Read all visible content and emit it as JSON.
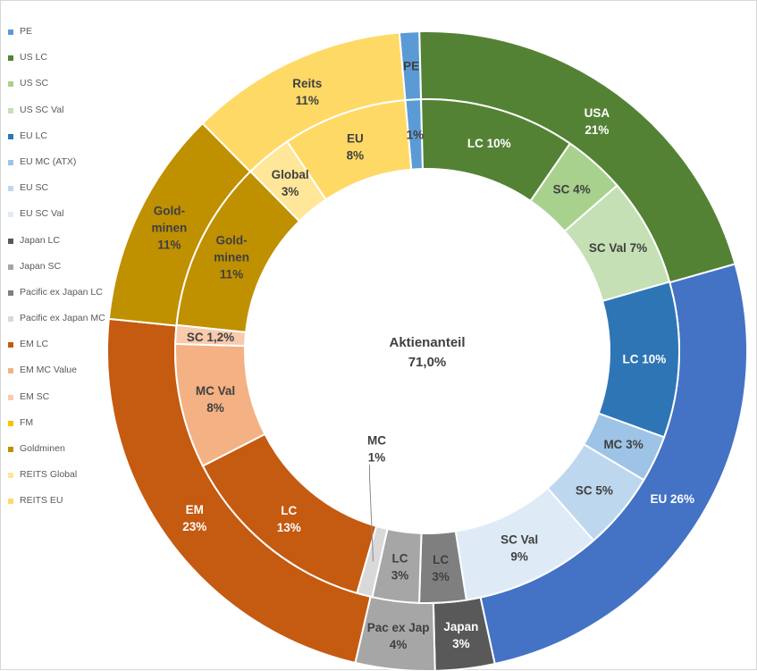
{
  "chart_data": {
    "type": "pie",
    "subtype": "doughnut",
    "center_label": {
      "title": "Aktienanteil",
      "value": "71,0%"
    },
    "legend_position": "left",
    "legend": [
      {
        "label": "PE",
        "color": "#5b9bd5"
      },
      {
        "label": "US LC",
        "color": "#548235"
      },
      {
        "label": "US SC",
        "color": "#a9d18e"
      },
      {
        "label": "US SC Val",
        "color": "#c5e0b4"
      },
      {
        "label": "EU LC",
        "color": "#2e75b6"
      },
      {
        "label": "EU MC (ATX)",
        "color": "#9dc3e6"
      },
      {
        "label": "EU SC",
        "color": "#bdd7ee"
      },
      {
        "label": "EU SC Val",
        "color": "#deebf7"
      },
      {
        "label": "Japan LC",
        "color": "#595959"
      },
      {
        "label": "Japan SC",
        "color": "#a6a6a6"
      },
      {
        "label": "Pacific ex Japan LC",
        "color": "#7f7f7f"
      },
      {
        "label": "Pacific ex Japan MC",
        "color": "#d9d9d9"
      },
      {
        "label": "EM LC",
        "color": "#c55a11"
      },
      {
        "label": "EM MC Value",
        "color": "#f4b183"
      },
      {
        "label": "EM SC",
        "color": "#f8cbad"
      },
      {
        "label": "FM",
        "color": "#ffc000"
      },
      {
        "label": "Goldminen",
        "color": "#bf9000"
      },
      {
        "label": "REITS Global",
        "color": "#ffe699"
      },
      {
        "label": "REITS EU",
        "color": "#ffd966"
      }
    ],
    "outer_ring": [
      {
        "label": [
          "PE"
        ],
        "value": 1,
        "color": "#5b9bd5",
        "text_color": "#404040"
      },
      {
        "label": [
          "USA",
          "21%"
        ],
        "value": 21,
        "color": "#548235",
        "text_color": "#ffffff"
      },
      {
        "label": [
          "EU 26%"
        ],
        "value": 26,
        "color": "#4472c4",
        "text_color": "#ffffff"
      },
      {
        "label": [
          "Japan",
          "3%"
        ],
        "value": 3,
        "color": "#595959",
        "text_color": "#ffffff"
      },
      {
        "label": [
          "Pac ex Jap",
          "4%"
        ],
        "value": 4,
        "color": "#a6a6a6",
        "text_color": "#404040"
      },
      {
        "label": [
          "EM",
          "23%"
        ],
        "value": 23,
        "color": "#c55a11",
        "text_color": "#ffffff"
      },
      {
        "label": [
          "Gold-",
          "minen",
          "11%"
        ],
        "value": 11,
        "color": "#bf9000",
        "text_color": "#404040"
      },
      {
        "label": [
          "Reits",
          "11%"
        ],
        "value": 11,
        "color": "#ffd966",
        "text_color": "#404040"
      }
    ],
    "inner_ring": [
      {
        "label": [
          "1%"
        ],
        "value": 1,
        "color": "#5b9bd5",
        "text_color": "#404040"
      },
      {
        "label": [
          "LC 10%"
        ],
        "value": 10,
        "color": "#548235",
        "text_color": "#ffffff"
      },
      {
        "label": [
          "SC 4%"
        ],
        "value": 4,
        "color": "#a9d18e",
        "text_color": "#404040"
      },
      {
        "label": [
          "SC Val 7%"
        ],
        "value": 7,
        "color": "#c5e0b4",
        "text_color": "#404040"
      },
      {
        "label": [
          "LC 10%"
        ],
        "value": 10,
        "color": "#2e75b6",
        "text_color": "#ffffff"
      },
      {
        "label": [
          "MC 3%"
        ],
        "value": 3,
        "color": "#9dc3e6",
        "text_color": "#404040"
      },
      {
        "label": [
          "SC 5%"
        ],
        "value": 5,
        "color": "#bdd7ee",
        "text_color": "#404040"
      },
      {
        "label": [
          "SC Val",
          "9%"
        ],
        "value": 9,
        "color": "#deebf7",
        "text_color": "#404040"
      },
      {
        "label": [
          "LC",
          "3%"
        ],
        "value": 3,
        "color": "#7f7f7f",
        "text_color": "#404040"
      },
      {
        "label": [
          "LC",
          "3%"
        ],
        "value": 3,
        "color": "#a6a6a6",
        "text_color": "#404040"
      },
      {
        "label": [
          "MC",
          "1%"
        ],
        "value": 1,
        "color": "#d9d9d9",
        "text_color": "#404040",
        "callout": true
      },
      {
        "label": [
          "LC",
          "13%"
        ],
        "value": 13,
        "color": "#c55a11",
        "text_color": "#ffffff"
      },
      {
        "label": [
          "MC Val",
          "8%"
        ],
        "value": 8,
        "color": "#f4b183",
        "text_color": "#404040"
      },
      {
        "label": [
          "SC 1,2%"
        ],
        "value": 1.2,
        "color": "#f8cbad",
        "text_color": "#404040"
      },
      {
        "label": [
          "Gold-",
          "minen",
          "11%"
        ],
        "value": 11,
        "color": "#bf9000",
        "text_color": "#404040"
      },
      {
        "label": [
          "Global",
          "3%"
        ],
        "value": 3,
        "color": "#ffe699",
        "text_color": "#404040"
      },
      {
        "label": [
          "EU",
          "8%"
        ],
        "value": 8,
        "color": "#ffd966",
        "text_color": "#404040"
      }
    ]
  }
}
